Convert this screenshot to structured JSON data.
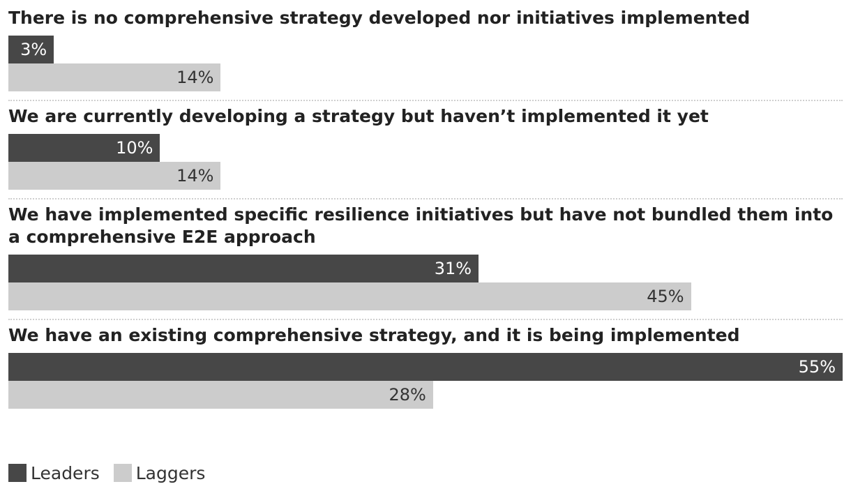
{
  "chart_data": {
    "type": "bar",
    "orientation": "horizontal",
    "categories": [
      "There is no comprehensive strategy developed nor initiatives implemented",
      "We are currently developing a strategy but haven’t implemented it yet",
      "We have implemented specific resilience initiatives but have not bundled them into a comprehensive E2E approach",
      "We have an existing comprehensive strategy, and it is being implemented"
    ],
    "series": [
      {
        "name": "Leaders",
        "values": [
          3,
          10,
          31,
          55
        ],
        "labels": [
          "3%",
          "10%",
          "31%",
          "55%"
        ],
        "color": "#474747",
        "label_color": "#ffffff"
      },
      {
        "name": "Laggers",
        "values": [
          14,
          14,
          45,
          28
        ],
        "labels": [
          "14%",
          "14%",
          "45%",
          "28%"
        ],
        "color": "#cccccc",
        "label_color": "#333333"
      }
    ],
    "xlim": [
      0,
      55
    ],
    "unit": "%",
    "grid": false,
    "legend_position": "bottom-left"
  }
}
